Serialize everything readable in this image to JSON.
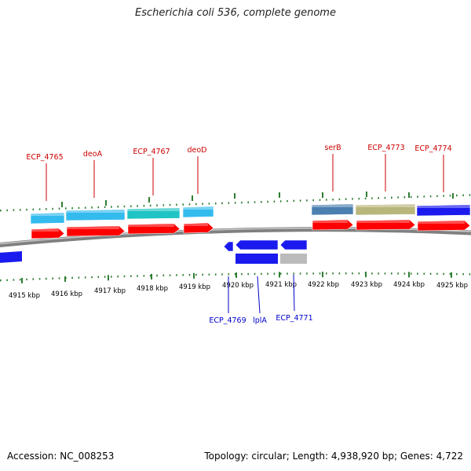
{
  "title": "Escherichia coli 536, complete genome",
  "footer": {
    "accession": "Accession: NC_008253",
    "summary": "Topology: circular; Length: 4,938,920 bp; Genes: 4,722"
  },
  "colors": {
    "forward_label": "#cc0000",
    "reverse_label": "#0000cc",
    "backbone": "#808080",
    "ticks": "#2e7d32",
    "cds": "#ff0000"
  },
  "kbp_labels": [
    "4915 kbp",
    "4916 kbp",
    "4917 kbp",
    "4918 kbp",
    "4919 kbp",
    "4920 kbp",
    "4921 kbp",
    "4922 kbp",
    "4923 kbp",
    "4924 kbp",
    "4925 kbp"
  ],
  "forward_genes": [
    {
      "name": "ECP_4765",
      "color": "#33bbee",
      "cds": true
    },
    {
      "name": "deoA",
      "color": "#33bbee",
      "cds": true
    },
    {
      "name": "ECP_4767",
      "color": "#20c4c4",
      "cds": true
    },
    {
      "name": "deoD",
      "color": "#33bbee",
      "cds": true
    },
    {
      "name": "serB",
      "color": "#4a7fb0",
      "cds": true
    },
    {
      "name": "ECP_4773",
      "color": "#b8b67a",
      "cds": true
    },
    {
      "name": "ECP_4774",
      "color": "#1a1aee",
      "cds": true
    }
  ],
  "reverse_genes": [
    {
      "name": "ECP_4769",
      "color": "#1a1aee"
    },
    {
      "name": "lplA",
      "color": "#1a1aee"
    },
    {
      "name": "ECP_4771",
      "color": "#bbbbbb"
    }
  ],
  "reverse_partial": {
    "name": "",
    "color": "#1a1aee"
  }
}
